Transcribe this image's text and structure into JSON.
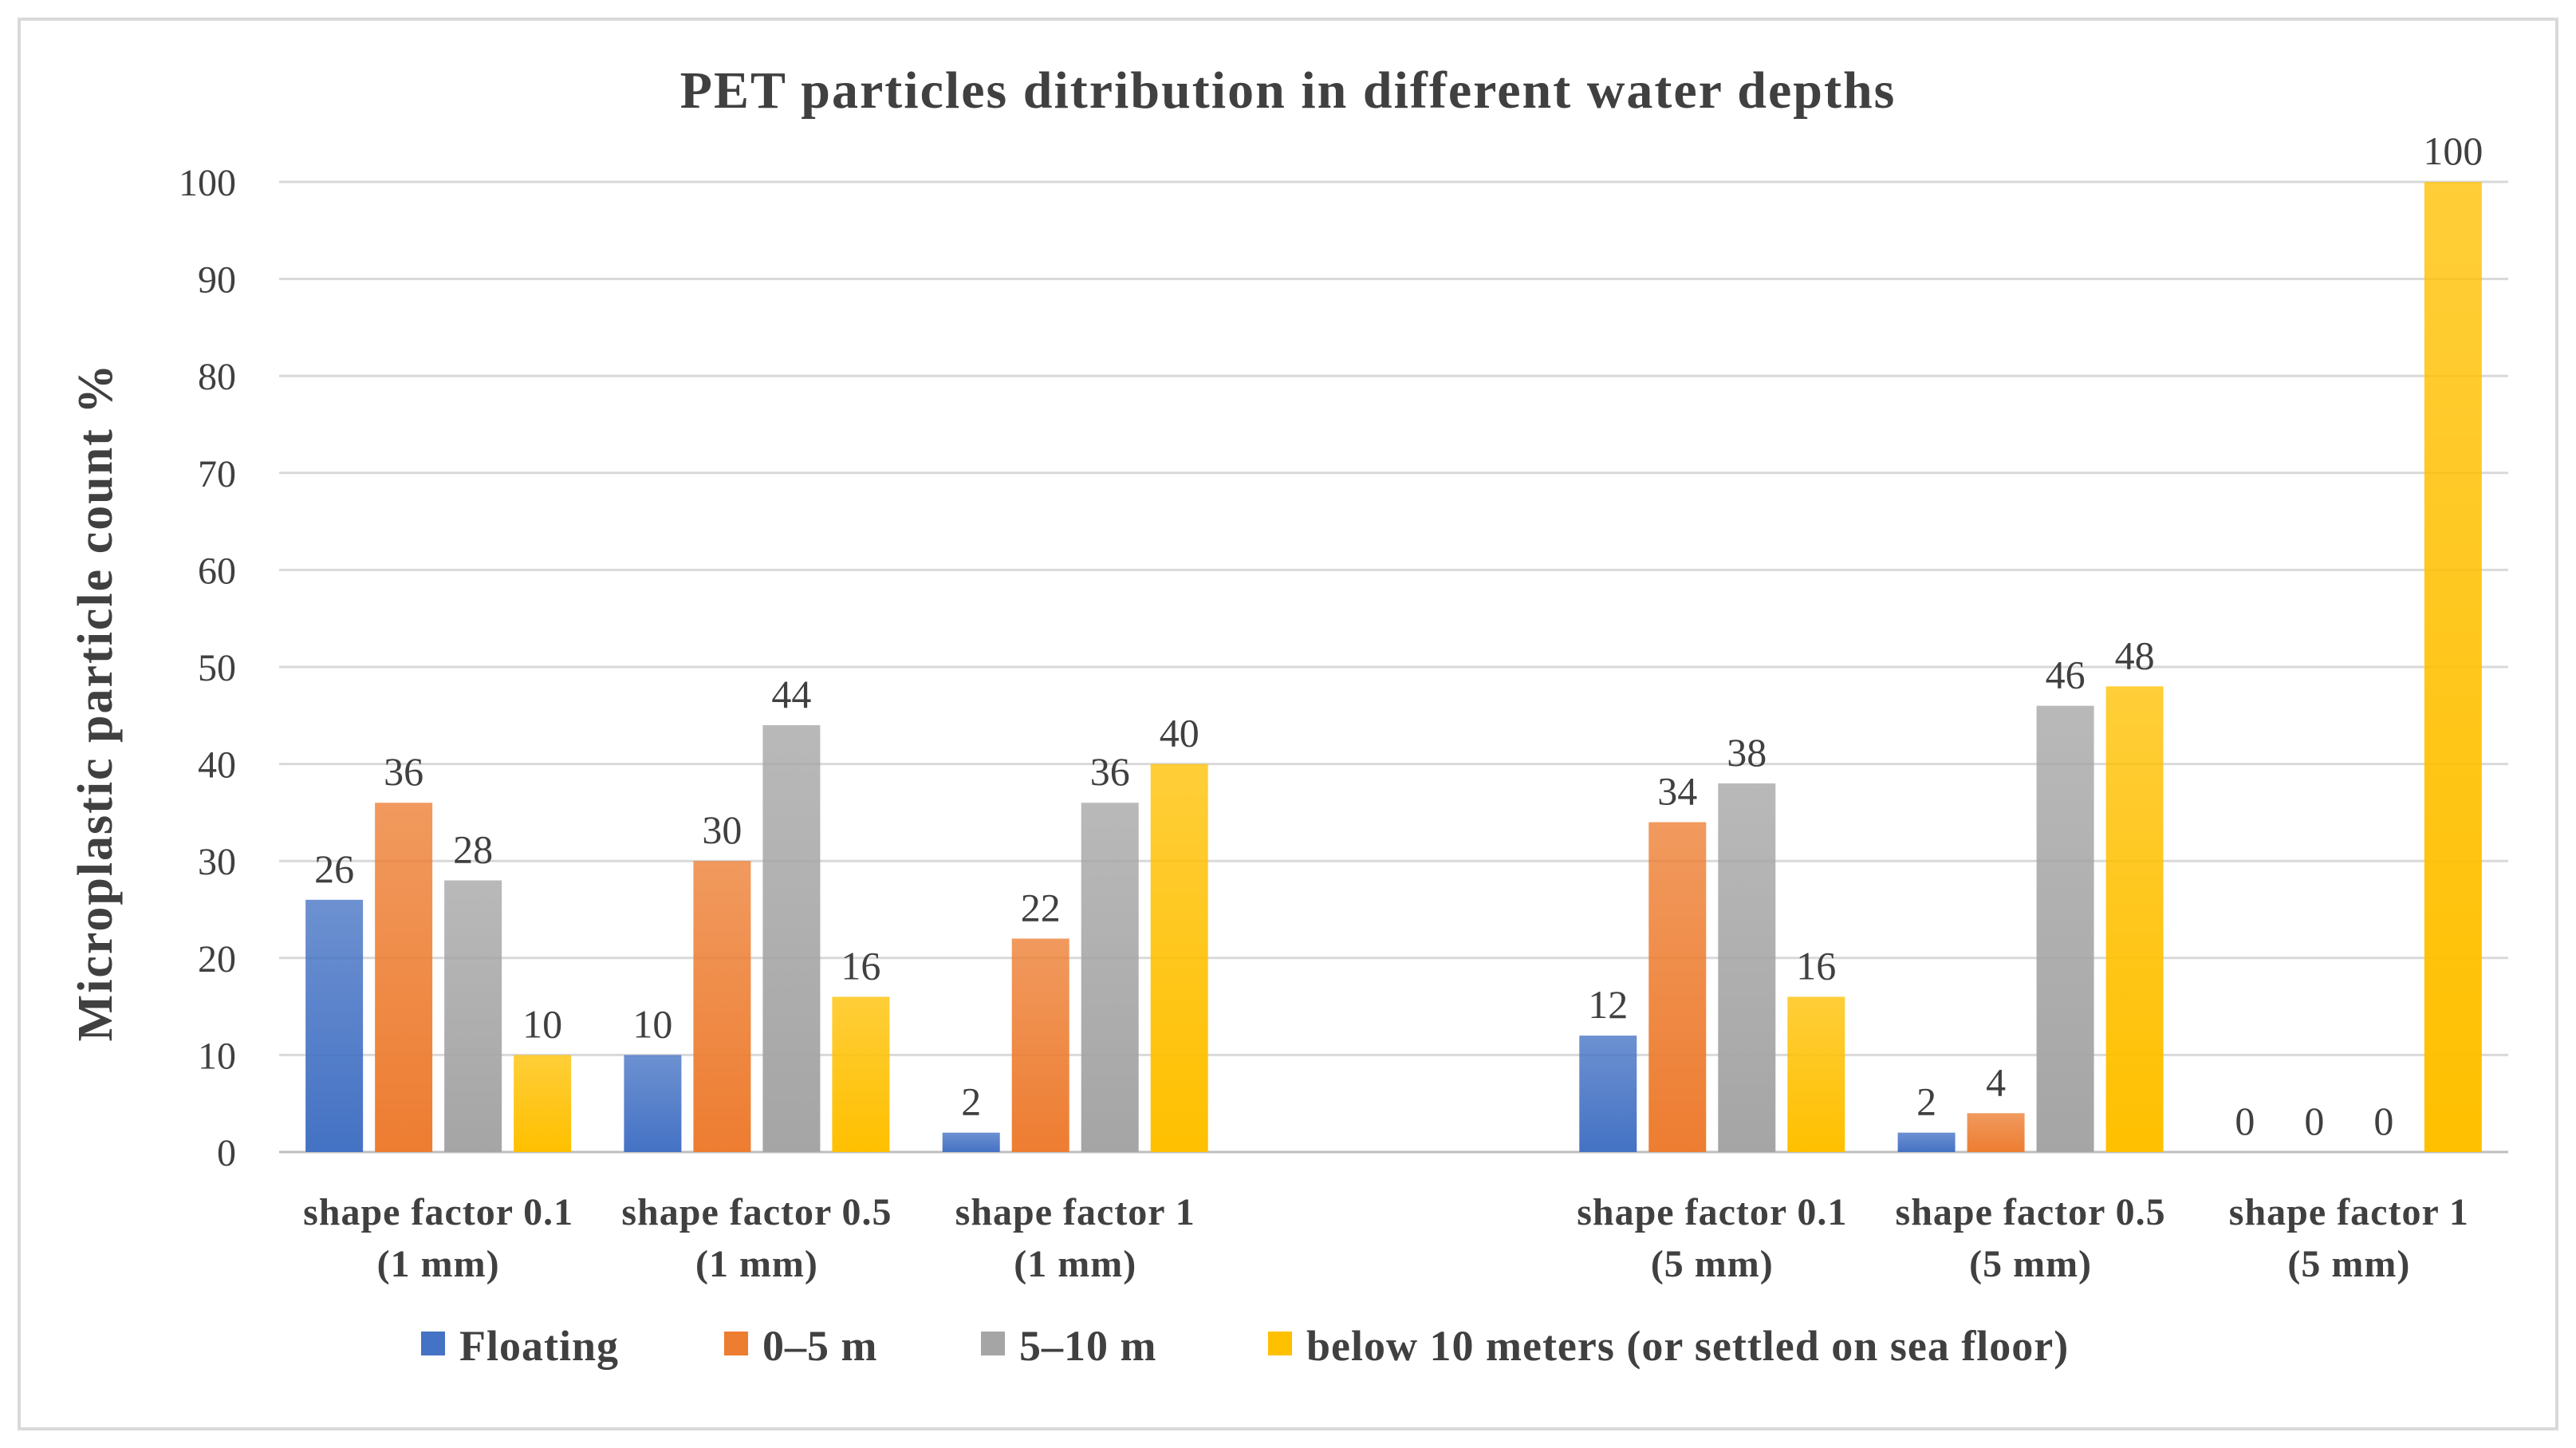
{
  "chart_data": {
    "type": "bar",
    "title": "PET particles ditribution in different water depths",
    "ylabel": "Microplastic particle count %",
    "xlabel": "",
    "ylim": [
      0,
      100
    ],
    "yticks": [
      0,
      10,
      20,
      30,
      40,
      50,
      60,
      70,
      80,
      90,
      100
    ],
    "grid": true,
    "legend_position": "bottom",
    "categories": [
      [
        "shape factor 0.1",
        "(1 mm)"
      ],
      [
        "shape factor 0.5",
        "(1 mm)"
      ],
      [
        "shape factor 1",
        "(1 mm)"
      ],
      [
        "",
        ""
      ],
      [
        "shape factor 0.1",
        "(5 mm)"
      ],
      [
        "shape factor 0.5",
        "(5 mm)"
      ],
      [
        "shape factor 1",
        "(5 mm)"
      ]
    ],
    "series": [
      {
        "name": "Floating",
        "color": "#4472c4",
        "values": [
          26,
          10,
          2,
          null,
          12,
          2,
          0
        ]
      },
      {
        "name": "0–5 m",
        "color": "#ed7d31",
        "values": [
          36,
          30,
          22,
          null,
          34,
          4,
          0
        ]
      },
      {
        "name": "5–10 m",
        "color": "#a5a5a5",
        "values": [
          28,
          44,
          36,
          null,
          38,
          46,
          0
        ]
      },
      {
        "name": "below 10 meters (or settled on sea floor)",
        "color": "#ffc000",
        "values": [
          10,
          16,
          40,
          null,
          16,
          48,
          100
        ]
      }
    ],
    "data_labels": [
      [
        26,
        10,
        2,
        null,
        12,
        2,
        0
      ],
      [
        36,
        30,
        22,
        null,
        34,
        4,
        0
      ],
      [
        28,
        44,
        36,
        null,
        38,
        46,
        0
      ],
      [
        10,
        16,
        40,
        null,
        16,
        48,
        100
      ]
    ]
  }
}
